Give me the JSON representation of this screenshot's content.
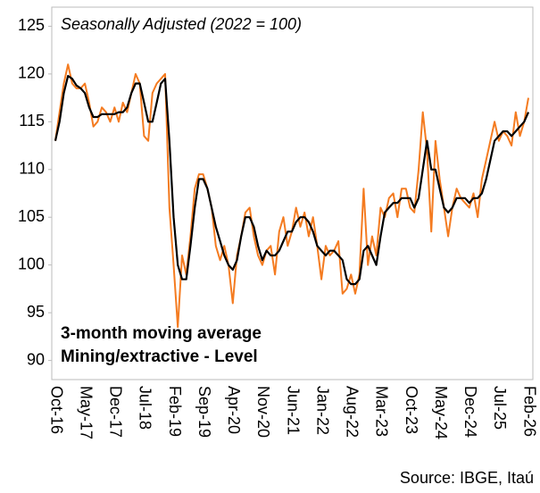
{
  "chart_data": {
    "type": "line",
    "title": "Seasonally Adjusted (2022 = 100)",
    "source": "Source: IBGE, Itaú",
    "categories": [
      "Oct-16",
      null,
      null,
      null,
      null,
      null,
      null,
      "May-17",
      null,
      null,
      null,
      null,
      null,
      null,
      "Dec-17",
      null,
      null,
      null,
      null,
      null,
      null,
      "Jul-18",
      null,
      null,
      null,
      null,
      null,
      null,
      "Feb-19",
      null,
      null,
      null,
      null,
      null,
      null,
      "Sep-19",
      null,
      null,
      null,
      null,
      null,
      null,
      "Apr-20",
      null,
      null,
      null,
      null,
      null,
      null,
      "Nov-20",
      null,
      null,
      null,
      null,
      null,
      null,
      "Jun-21",
      null,
      null,
      null,
      null,
      null,
      null,
      "Jan-22",
      null,
      null,
      null,
      null,
      null,
      null,
      "Aug-22",
      null,
      null,
      null,
      null,
      null,
      null,
      "Mar-23",
      null,
      null,
      null,
      null,
      null,
      null,
      "Oct-23",
      null,
      null,
      null,
      null,
      null,
      null,
      "May-24",
      null,
      null,
      null,
      null,
      null,
      null,
      "Dec-24",
      null,
      null,
      null,
      null,
      null,
      null,
      "Jul-25",
      null,
      null,
      null,
      null,
      null,
      null,
      "Feb-26"
    ],
    "series": [
      {
        "name": "Mining/extractive - Level",
        "color": "#f47b20",
        "values": [
          113,
          116,
          119,
          121,
          119,
          118.5,
          118.5,
          119,
          117,
          114.5,
          115,
          116.5,
          116,
          115,
          116.5,
          115,
          117,
          116,
          118,
          120,
          119,
          113.5,
          113,
          118,
          119,
          119.5,
          120,
          106,
          100,
          93.5,
          101,
          99,
          103,
          108,
          109.5,
          109.5,
          108,
          106,
          102,
          100.5,
          102,
          100,
          96,
          101,
          103,
          105.5,
          106,
          103,
          101,
          100,
          101.5,
          102,
          99,
          103.5,
          105,
          102,
          103.5,
          106,
          104,
          105.5,
          103,
          105,
          102,
          98.5,
          102,
          101,
          101.5,
          102.5,
          97,
          97.5,
          99,
          97,
          99,
          108,
          100,
          103,
          101,
          106,
          105,
          107,
          107.5,
          105,
          108,
          108,
          106,
          105.5,
          110,
          116,
          112,
          103.5,
          113,
          109,
          106,
          103,
          106,
          108,
          107,
          106.5,
          106,
          107.5,
          105,
          109,
          111,
          113,
          115,
          113,
          114,
          113.5,
          112.5,
          116,
          113.5,
          115,
          117.5
        ]
      },
      {
        "name": "3-month moving average",
        "color": "#000000",
        "values": [
          113,
          115,
          118,
          119.8,
          119.5,
          118.8,
          118.5,
          118,
          116.5,
          115.5,
          115.5,
          115.8,
          115.8,
          115.8,
          115.8,
          116,
          116,
          116.5,
          118,
          119,
          119,
          117,
          115,
          115,
          117,
          119,
          119.5,
          113,
          105,
          100,
          98.5,
          98.5,
          102,
          106,
          109,
          109,
          108,
          106,
          104,
          102.5,
          101,
          100,
          99.5,
          100.5,
          103,
          105,
          105,
          104,
          102,
          100.5,
          101.5,
          101,
          101,
          101.5,
          102.5,
          103.5,
          103.5,
          104.5,
          105,
          105,
          104.5,
          103.5,
          102,
          101.5,
          101,
          101.5,
          101.5,
          101,
          100.5,
          98.5,
          98,
          98,
          98.5,
          101.5,
          102,
          101,
          100,
          103,
          105.5,
          106,
          106.5,
          106.5,
          107,
          107,
          107,
          106,
          107,
          110,
          113,
          110,
          110,
          108,
          106,
          105.5,
          106,
          107,
          107,
          107,
          106.5,
          107,
          107,
          107.5,
          109,
          111,
          113,
          113.5,
          114,
          114,
          113.5,
          114,
          114.5,
          115,
          116
        ]
      }
    ],
    "ylim": [
      88,
      127
    ],
    "yticks": [
      90,
      95,
      100,
      105,
      110,
      115,
      120,
      125
    ]
  }
}
